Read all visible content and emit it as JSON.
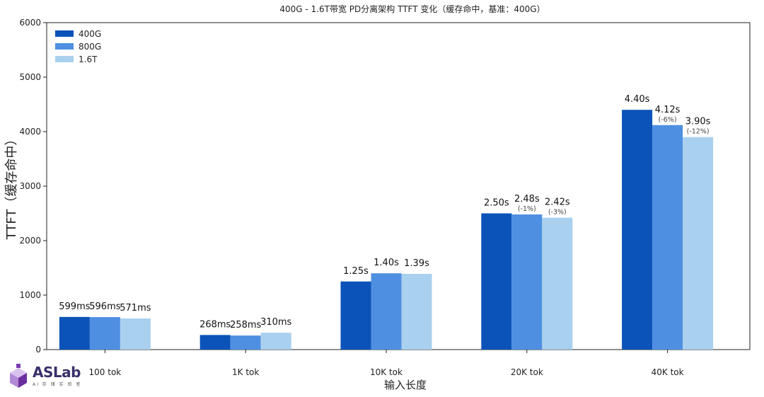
{
  "chart_data": {
    "type": "bar",
    "title": "400G - 1.6T带宽 PD分离架构 TTFT 变化（缓存命中，基准：400G）",
    "xlabel": "输入长度",
    "ylabel": "TTFT（缓存命中）",
    "ylim": [
      0,
      6000
    ],
    "yticks": [
      0,
      1000,
      2000,
      3000,
      4000,
      5000,
      6000
    ],
    "grid": false,
    "legend_position": "top-left",
    "categories": [
      "100 tok",
      "1K tok",
      "10K tok",
      "20K tok",
      "40K tok"
    ],
    "series": [
      {
        "name": "400G",
        "color": "#0b53b8",
        "values": [
          599,
          268,
          1250,
          2500,
          4400
        ],
        "labels": [
          "599ms",
          "268ms",
          "1.25s",
          "2.50s",
          "4.40s"
        ],
        "sublabels": [
          "",
          "",
          "",
          "",
          ""
        ]
      },
      {
        "name": "800G",
        "color": "#4f8fe2",
        "values": [
          596,
          258,
          1400,
          2480,
          4120
        ],
        "labels": [
          "596ms",
          "258ms",
          "1.40s",
          "2.48s",
          "4.12s"
        ],
        "sublabels": [
          "",
          "",
          "",
          "(-1%)",
          "(-6%)"
        ]
      },
      {
        "name": "1.6T",
        "color": "#a9d0ee",
        "values": [
          571,
          310,
          1390,
          2420,
          3900
        ],
        "labels": [
          "571ms",
          "310ms",
          "1.39s",
          "2.42s",
          "3.90s"
        ],
        "sublabels": [
          "",
          "",
          "",
          "(-3%)",
          "(-12%)"
        ]
      }
    ]
  },
  "logo": {
    "text": "ASLab",
    "subtext": "AI 存 储 实 验 室",
    "mark_color": "#7b3fb0"
  }
}
